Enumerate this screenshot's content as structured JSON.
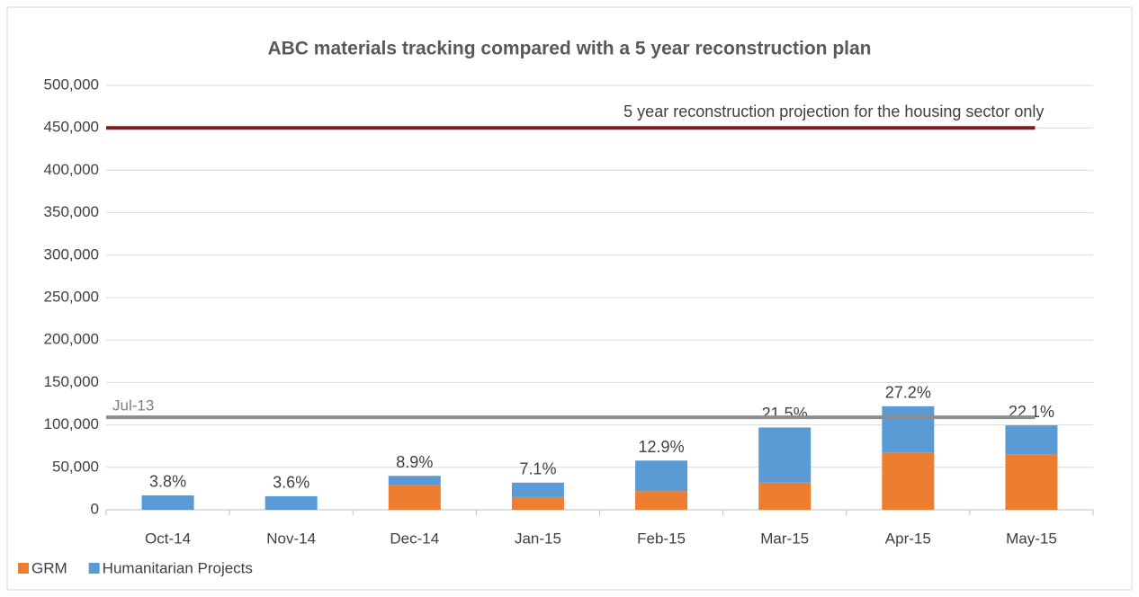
{
  "chart_data": {
    "type": "stacked_bar",
    "title": "ABC materials tracking compared with a 5 year reconstruction plan",
    "categories": [
      "Oct-14",
      "Nov-14",
      "Dec-14",
      "Jan-15",
      "Feb-15",
      "Mar-15",
      "Apr-15",
      "May-15"
    ],
    "series": [
      {
        "name": "GRM",
        "color": "#ed7d31",
        "values": [
          0,
          0,
          29000,
          15000,
          22000,
          32000,
          67000,
          65000
        ]
      },
      {
        "name": "Humanitarian Projects",
        "color": "#5b9bd5",
        "values": [
          17000,
          16000,
          11000,
          17000,
          36000,
          65000,
          55000,
          34500
        ]
      }
    ],
    "percent_of_plan": {
      "values": [
        3.8,
        3.6,
        8.9,
        7.1,
        12.9,
        21.5,
        27.2,
        22.1
      ],
      "value_labels": [
        "3.8%",
        "3.6%",
        "8.9%",
        "7.1%",
        "12.9%",
        "21.5%",
        "27.2%",
        "22.1%"
      ]
    },
    "reference_lines": [
      {
        "value": 450000,
        "label": "5 year reconstruction projection for the housing sector only",
        "color": "#7b1c1c"
      },
      {
        "value": 109000,
        "label": "Jul-13",
        "color": "#8c8c8c"
      }
    ],
    "ylim": [
      0,
      500000
    ],
    "yticks": [
      0,
      {
        "value": 50000,
        "label": "50,000"
      },
      {
        "value": 100000,
        "label": "100,000"
      },
      {
        "value": 150000,
        "label": "150,000"
      },
      {
        "value": 200000,
        "label": "200,000"
      },
      {
        "value": 250000,
        "label": "250,000"
      },
      {
        "value": 300000,
        "label": "300,000"
      },
      {
        "value": 350000,
        "label": "350,000"
      },
      {
        "value": 400000,
        "label": "400,000"
      },
      {
        "value": 450000,
        "label": "450,000"
      },
      {
        "value": 500000,
        "label": "500,000"
      }
    ],
    "grid": true,
    "legend": "bottom-left"
  }
}
